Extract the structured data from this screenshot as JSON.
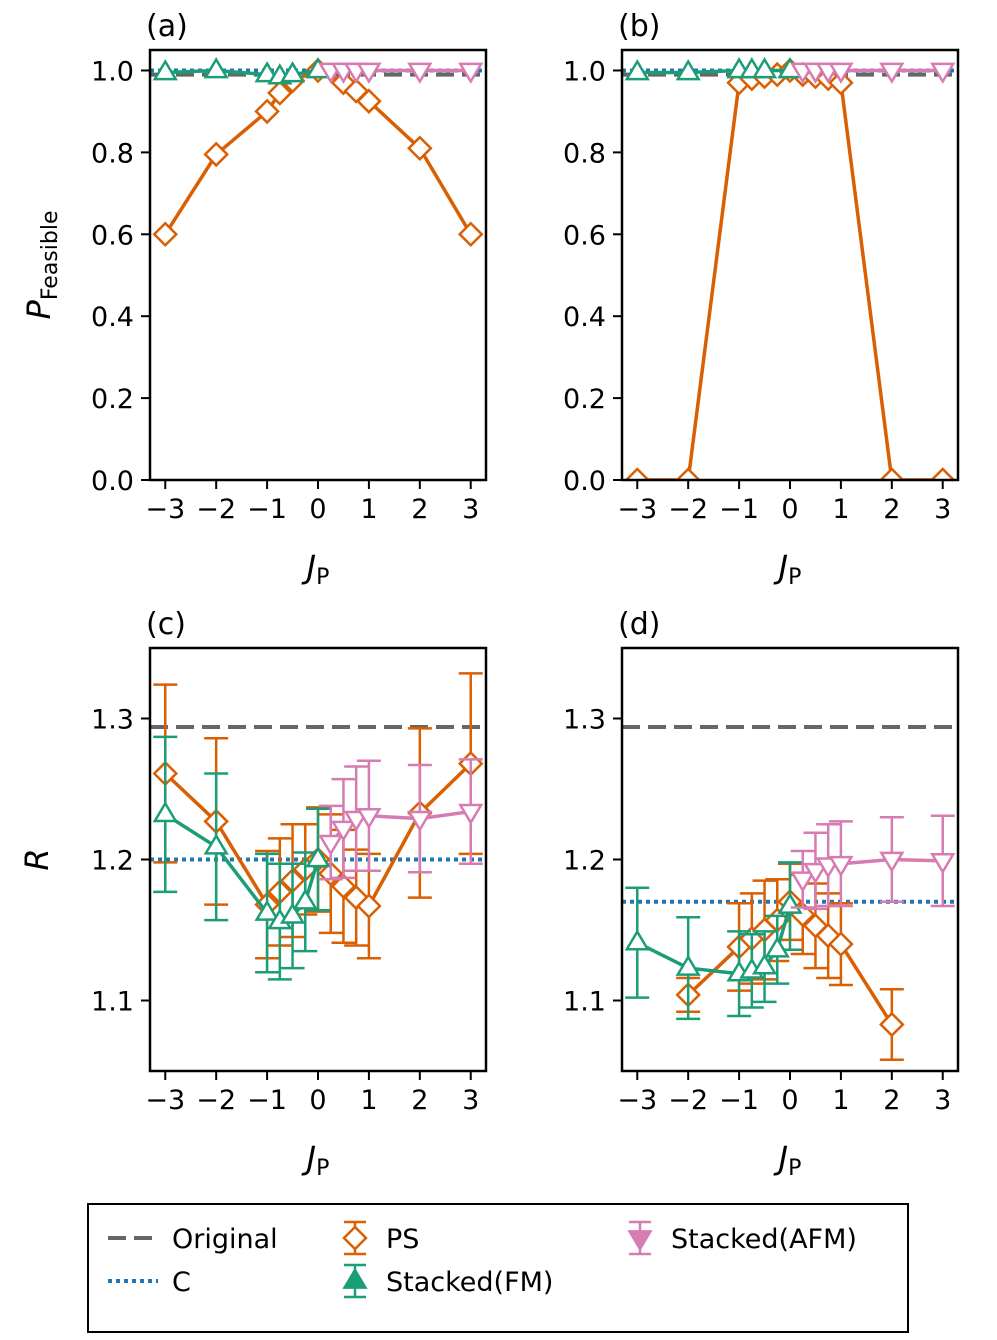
{
  "colors": {
    "original": "#666666",
    "c": "#1f77b4",
    "ps": "#d95f02",
    "fm": "#1b9e77",
    "afm": "#d77bb3"
  },
  "shared": {
    "xlabel_main": "J",
    "xlabel_sub": "P",
    "ylabel_top_main": "P",
    "ylabel_top_sub": "Feasible",
    "ylabel_bottom": "R",
    "xticks": [
      -3,
      -2,
      -1,
      0,
      1,
      2,
      3
    ],
    "xtick_labels": [
      "−3",
      "−2",
      "−1",
      "0",
      "1",
      "2",
      "3"
    ]
  },
  "legend": {
    "original": "Original",
    "c": "C",
    "ps": "PS",
    "fm": "Stacked(FM)",
    "afm": "Stacked(AFM)"
  },
  "chart_data": [
    {
      "id": "a",
      "type": "line",
      "title": "(a)",
      "xlabel": "J_P",
      "ylabel": "P_Feasible",
      "xlim": [
        -3.3,
        3.3
      ],
      "ylim": [
        0.0,
        1.05
      ],
      "yticks": [
        0.0,
        0.2,
        0.4,
        0.6,
        0.8,
        1.0
      ],
      "ytick_labels": [
        "0.0",
        "0.2",
        "0.4",
        "0.6",
        "0.8",
        "1.0"
      ],
      "reference": {
        "original": 0.99,
        "c": 1.0
      },
      "series": [
        {
          "name": "PS",
          "key": "ps",
          "marker": "diamond",
          "x": [
            -3,
            -2,
            -1,
            -0.75,
            -0.5,
            0,
            0.5,
            0.75,
            1,
            2,
            3
          ],
          "y": [
            0.6,
            0.795,
            0.9,
            0.945,
            0.975,
            1.0,
            0.97,
            0.95,
            0.925,
            0.81,
            0.6
          ]
        },
        {
          "name": "Stacked(FM)",
          "key": "fm",
          "marker": "triangle-up",
          "x": [
            -3,
            -2,
            -1,
            -0.75,
            -0.5,
            0
          ],
          "y": [
            0.995,
            1.0,
            0.99,
            0.985,
            0.99,
            1.0
          ]
        },
        {
          "name": "Stacked(AFM)",
          "key": "afm",
          "marker": "triangle-down",
          "x": [
            0.25,
            0.5,
            0.75,
            1,
            2,
            3
          ],
          "y": [
            1.0,
            1.0,
            1.0,
            1.0,
            1.0,
            1.0
          ]
        }
      ]
    },
    {
      "id": "b",
      "type": "line",
      "title": "(b)",
      "xlabel": "J_P",
      "ylabel": "",
      "xlim": [
        -3.3,
        3.3
      ],
      "ylim": [
        0.0,
        1.05
      ],
      "yticks": [
        0.0,
        0.2,
        0.4,
        0.6,
        0.8,
        1.0
      ],
      "ytick_labels": [
        "0.0",
        "0.2",
        "0.4",
        "0.6",
        "0.8",
        "1.0"
      ],
      "reference": {
        "original": 0.99,
        "c": 1.0
      },
      "series": [
        {
          "name": "PS",
          "key": "ps",
          "marker": "diamond",
          "x": [
            -3,
            -2,
            -1,
            -0.75,
            -0.5,
            -0.25,
            0,
            0.25,
            0.5,
            0.75,
            1,
            2,
            3
          ],
          "y": [
            0.0,
            0.0,
            0.97,
            0.98,
            0.985,
            0.99,
            1.0,
            0.99,
            0.985,
            0.98,
            0.97,
            0.0,
            0.0
          ]
        },
        {
          "name": "Stacked(FM)",
          "key": "fm",
          "marker": "triangle-up",
          "x": [
            -3,
            -2,
            -1,
            -0.75,
            -0.5,
            0
          ],
          "y": [
            0.995,
            0.995,
            1.0,
            1.0,
            1.0,
            1.0
          ]
        },
        {
          "name": "Stacked(AFM)",
          "key": "afm",
          "marker": "triangle-down",
          "x": [
            0.25,
            0.5,
            0.75,
            1,
            2,
            3
          ],
          "y": [
            1.0,
            1.0,
            1.0,
            1.0,
            1.0,
            1.0
          ]
        }
      ]
    },
    {
      "id": "c",
      "type": "line",
      "title": "(c)",
      "xlabel": "J_P",
      "ylabel": "R",
      "xlim": [
        -3.3,
        3.3
      ],
      "ylim": [
        1.05,
        1.35
      ],
      "yticks": [
        1.1,
        1.2,
        1.3
      ],
      "ytick_labels": [
        "1.1",
        "1.2",
        "1.3"
      ],
      "reference": {
        "original": 1.294,
        "c": 1.2
      },
      "series": [
        {
          "name": "PS",
          "key": "ps",
          "marker": "diamond",
          "x": [
            -3,
            -2,
            -1,
            -0.75,
            -0.5,
            -0.25,
            0,
            0.25,
            0.5,
            0.75,
            1,
            2,
            3
          ],
          "y": [
            1.261,
            1.227,
            1.168,
            1.177,
            1.185,
            1.193,
            1.2,
            1.19,
            1.181,
            1.173,
            1.167,
            1.233,
            1.268
          ],
          "err": [
            0.063,
            0.059,
            0.038,
            0.038,
            0.04,
            0.032,
            0.037,
            0.042,
            0.04,
            0.034,
            0.037,
            0.06,
            0.064
          ]
        },
        {
          "name": "Stacked(FM)",
          "key": "fm",
          "marker": "triangle-up",
          "x": [
            -3,
            -2,
            -1,
            -0.75,
            -0.5,
            -0.25,
            0
          ],
          "y": [
            1.232,
            1.209,
            1.162,
            1.156,
            1.16,
            1.17,
            1.2
          ],
          "err": [
            0.055,
            0.052,
            0.042,
            0.041,
            0.037,
            0.035,
            0.036
          ]
        },
        {
          "name": "Stacked(AFM)",
          "key": "afm",
          "marker": "triangle-down",
          "x": [
            0.25,
            0.5,
            0.75,
            1,
            2,
            3
          ],
          "y": [
            1.212,
            1.222,
            1.229,
            1.231,
            1.229,
            1.234
          ],
          "err": [
            0.026,
            0.035,
            0.037,
            0.039,
            0.038,
            0.037
          ]
        }
      ]
    },
    {
      "id": "d",
      "type": "line",
      "title": "(d)",
      "xlabel": "J_P",
      "ylabel": "",
      "xlim": [
        -3.3,
        3.3
      ],
      "ylim": [
        1.05,
        1.35
      ],
      "yticks": [
        1.1,
        1.2,
        1.3
      ],
      "ytick_labels": [
        "1.1",
        "1.2",
        "1.3"
      ],
      "reference": {
        "original": 1.294,
        "c": 1.17
      },
      "series": [
        {
          "name": "PS",
          "key": "ps",
          "marker": "diamond",
          "x": [
            -2,
            -1,
            -0.75,
            -0.5,
            -0.25,
            0,
            0.25,
            0.5,
            0.75,
            1,
            2
          ],
          "y": [
            1.104,
            1.138,
            1.144,
            1.15,
            1.157,
            1.17,
            1.161,
            1.153,
            1.146,
            1.14,
            1.083
          ],
          "err": [
            0.012,
            0.031,
            0.032,
            0.035,
            0.029,
            0.027,
            0.028,
            0.03,
            0.03,
            0.029,
            0.025
          ]
        },
        {
          "name": "Stacked(FM)",
          "key": "fm",
          "marker": "triangle-up",
          "x": [
            -3,
            -2,
            -1,
            -0.75,
            -0.5,
            -0.25,
            0
          ],
          "y": [
            1.141,
            1.123,
            1.119,
            1.121,
            1.124,
            1.136,
            1.167
          ],
          "err": [
            0.039,
            0.036,
            0.03,
            0.026,
            0.025,
            0.024,
            0.031
          ]
        },
        {
          "name": "Stacked(AFM)",
          "key": "afm",
          "marker": "triangle-down",
          "x": [
            0.25,
            0.5,
            0.75,
            1,
            2,
            3
          ],
          "y": [
            1.186,
            1.192,
            1.196,
            1.197,
            1.2,
            1.199
          ],
          "err": [
            0.02,
            0.027,
            0.029,
            0.03,
            0.03,
            0.032
          ]
        }
      ]
    }
  ]
}
